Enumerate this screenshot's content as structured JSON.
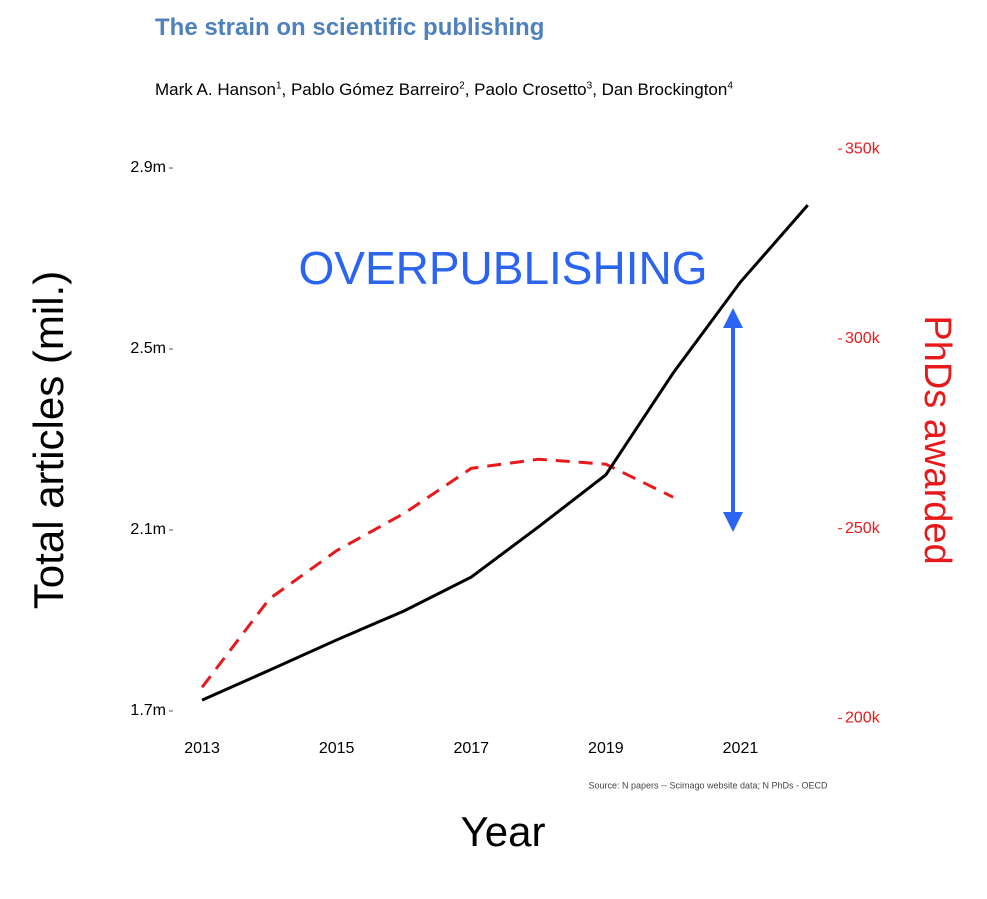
{
  "header": {
    "title": "The strain on scientific publishing",
    "authors": [
      {
        "name": "Mark A. Hanson",
        "affiliation": "1"
      },
      {
        "name": "Pablo Gómez Barreiro",
        "affiliation": "2"
      },
      {
        "name": "Paolo Crosetto",
        "affiliation": "3"
      },
      {
        "name": "Dan Brockington",
        "affiliation": "4"
      }
    ]
  },
  "chart_data": {
    "type": "line",
    "x_label": "Year",
    "y_label": "Total articles (mil.)",
    "y2_label": "PhDs awarded",
    "annotation": "OVERPUBLISHING",
    "source": "Source: N papers -- Scimago website data; N PhDs - OECD",
    "x": [
      2013,
      2014,
      2015,
      2016,
      2017,
      2018,
      2019,
      2020,
      2021,
      2022
    ],
    "xlim": [
      2012.5,
      2022.5
    ],
    "xticks": [
      2013,
      2015,
      2017,
      2019,
      2021
    ],
    "ylim": [
      1.65,
      2.95
    ],
    "yticks": [
      {
        "value": 1.7,
        "label": "1.7m"
      },
      {
        "value": 2.1,
        "label": "2.1m"
      },
      {
        "value": 2.5,
        "label": "2.5m"
      },
      {
        "value": 2.9,
        "label": "2.9m"
      }
    ],
    "y2lim": [
      196000,
      351000
    ],
    "y2ticks": [
      {
        "value": 200000,
        "label": "200k"
      },
      {
        "value": 250000,
        "label": "250k"
      },
      {
        "value": 300000,
        "label": "300k"
      },
      {
        "value": 350000,
        "label": "350k"
      }
    ],
    "series": [
      {
        "name": "Total articles",
        "color": "#000000",
        "values": [
          1.724,
          1.79,
          1.857,
          1.921,
          1.996,
          2.107,
          2.222,
          2.447,
          2.648,
          2.818
        ]
      },
      {
        "name": "PhDs awarded",
        "color": "#e8191b",
        "axis": "y2",
        "dashed": true,
        "values": [
          208200,
          231500,
          244200,
          254000,
          265900,
          268300,
          267000,
          258300,
          null,
          null
        ]
      }
    ]
  }
}
